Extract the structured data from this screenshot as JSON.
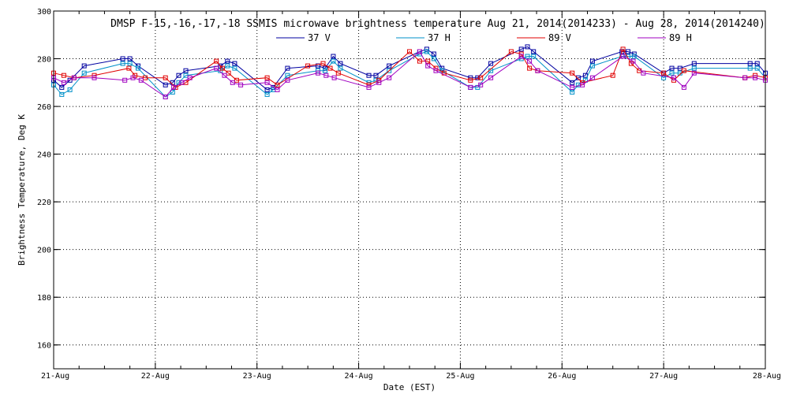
{
  "chart_data": {
    "type": "line",
    "title": "DMSP F-15,-16,-17,-18 SSMIS microwave brightness temperature Aug 21, 2014(2014233) - Aug 28, 2014(2014240)",
    "xlabel": "Date (EST)",
    "ylabel": "Brightness Temperature, Deg K",
    "xlim": [
      0,
      7
    ],
    "ylim": [
      150,
      300
    ],
    "yticks": [
      160,
      180,
      200,
      220,
      240,
      260,
      280,
      300
    ],
    "xtick_labels": [
      "21-Aug",
      "22-Aug",
      "23-Aug",
      "24-Aug",
      "25-Aug",
      "26-Aug",
      "27-Aug",
      "28-Aug"
    ],
    "grid": true,
    "legend_position": "top",
    "series": [
      {
        "name": "37 V",
        "color": "#0000a0",
        "x": [
          0.0,
          0.08,
          0.16,
          0.3,
          0.68,
          0.75,
          0.83,
          1.1,
          1.17,
          1.23,
          1.3,
          1.64,
          1.71,
          1.78,
          2.1,
          2.16,
          2.3,
          2.6,
          2.67,
          2.75,
          2.82,
          3.1,
          3.17,
          3.3,
          3.6,
          3.67,
          3.74,
          3.82,
          4.1,
          4.17,
          4.3,
          4.6,
          4.66,
          4.72,
          5.1,
          5.16,
          5.23,
          5.3,
          5.59,
          5.65,
          5.71,
          6.0,
          6.08,
          6.16,
          6.3,
          6.85,
          6.92,
          7.0
        ],
        "values": [
          271,
          268,
          271,
          277,
          280,
          280,
          277,
          269,
          270,
          273,
          275,
          277,
          279,
          278,
          267,
          268,
          276,
          277,
          276,
          281,
          278,
          273,
          273,
          277,
          283,
          284,
          282,
          276,
          272,
          272,
          278,
          284,
          285,
          283,
          270,
          272,
          273,
          279,
          283,
          283,
          282,
          274,
          276,
          276,
          278,
          278,
          278,
          274
        ]
      },
      {
        "name": "37 H",
        "color": "#0090c8",
        "x": [
          0.0,
          0.08,
          0.16,
          0.3,
          0.68,
          0.75,
          0.83,
          1.1,
          1.17,
          1.23,
          1.3,
          1.64,
          1.71,
          1.78,
          2.1,
          2.16,
          2.3,
          2.6,
          2.67,
          2.75,
          2.82,
          3.1,
          3.17,
          3.3,
          3.6,
          3.67,
          3.74,
          3.82,
          4.1,
          4.17,
          4.3,
          4.6,
          4.66,
          4.72,
          5.1,
          5.16,
          5.23,
          5.3,
          5.59,
          5.65,
          5.71,
          6.0,
          6.08,
          6.16,
          6.3,
          6.85,
          6.92,
          7.0
        ],
        "values": [
          269,
          265,
          267,
          274,
          278,
          278,
          276,
          264,
          266,
          270,
          273,
          275,
          277,
          276,
          265,
          267,
          273,
          275,
          275,
          279,
          276,
          270,
          271,
          275,
          282,
          283,
          280,
          275,
          268,
          268,
          275,
          280,
          281,
          281,
          266,
          269,
          271,
          277,
          281,
          281,
          281,
          272,
          274,
          274,
          276,
          276,
          276,
          272
        ]
      },
      {
        "name": "89 V",
        "color": "#e00000",
        "x": [
          0.0,
          0.1,
          0.2,
          0.4,
          0.74,
          0.8,
          0.9,
          1.1,
          1.2,
          1.3,
          1.6,
          1.66,
          1.72,
          1.8,
          2.1,
          2.2,
          2.5,
          2.65,
          2.72,
          2.8,
          3.1,
          3.2,
          3.5,
          3.6,
          3.68,
          3.76,
          3.84,
          4.1,
          4.2,
          4.5,
          4.6,
          4.68,
          4.76,
          5.1,
          5.2,
          5.5,
          5.6,
          5.68,
          5.76,
          6.0,
          6.1,
          6.2,
          6.8,
          6.9,
          7.0
        ],
        "values": [
          274,
          273,
          272,
          273,
          276,
          273,
          272,
          272,
          268,
          270,
          279,
          276,
          274,
          271,
          272,
          269,
          277,
          278,
          276,
          274,
          269,
          271,
          283,
          279,
          279,
          276,
          274,
          271,
          272,
          283,
          282,
          276,
          275,
          274,
          270,
          273,
          284,
          278,
          275,
          274,
          271,
          275,
          272,
          273,
          272
        ]
      },
      {
        "name": "89 H",
        "color": "#a000c0",
        "x": [
          0.0,
          0.1,
          0.2,
          0.4,
          0.7,
          0.78,
          0.86,
          1.1,
          1.18,
          1.26,
          1.34,
          1.6,
          1.68,
          1.76,
          1.84,
          2.1,
          2.2,
          2.3,
          2.6,
          2.68,
          2.76,
          3.1,
          3.2,
          3.3,
          3.6,
          3.68,
          3.76,
          4.1,
          4.2,
          4.3,
          4.6,
          4.68,
          4.76,
          5.1,
          5.2,
          5.3,
          5.6,
          5.7,
          5.8,
          6.1,
          6.2,
          6.3,
          6.8,
          6.9,
          7.0
        ],
        "values": [
          272,
          270,
          272,
          272,
          271,
          272,
          271,
          264,
          268,
          270,
          272,
          276,
          273,
          270,
          269,
          270,
          267,
          271,
          274,
          273,
          272,
          268,
          270,
          272,
          283,
          277,
          275,
          268,
          269,
          272,
          281,
          279,
          275,
          268,
          269,
          272,
          281,
          279,
          274,
          272,
          268,
          274,
          272,
          272,
          271
        ]
      }
    ]
  }
}
